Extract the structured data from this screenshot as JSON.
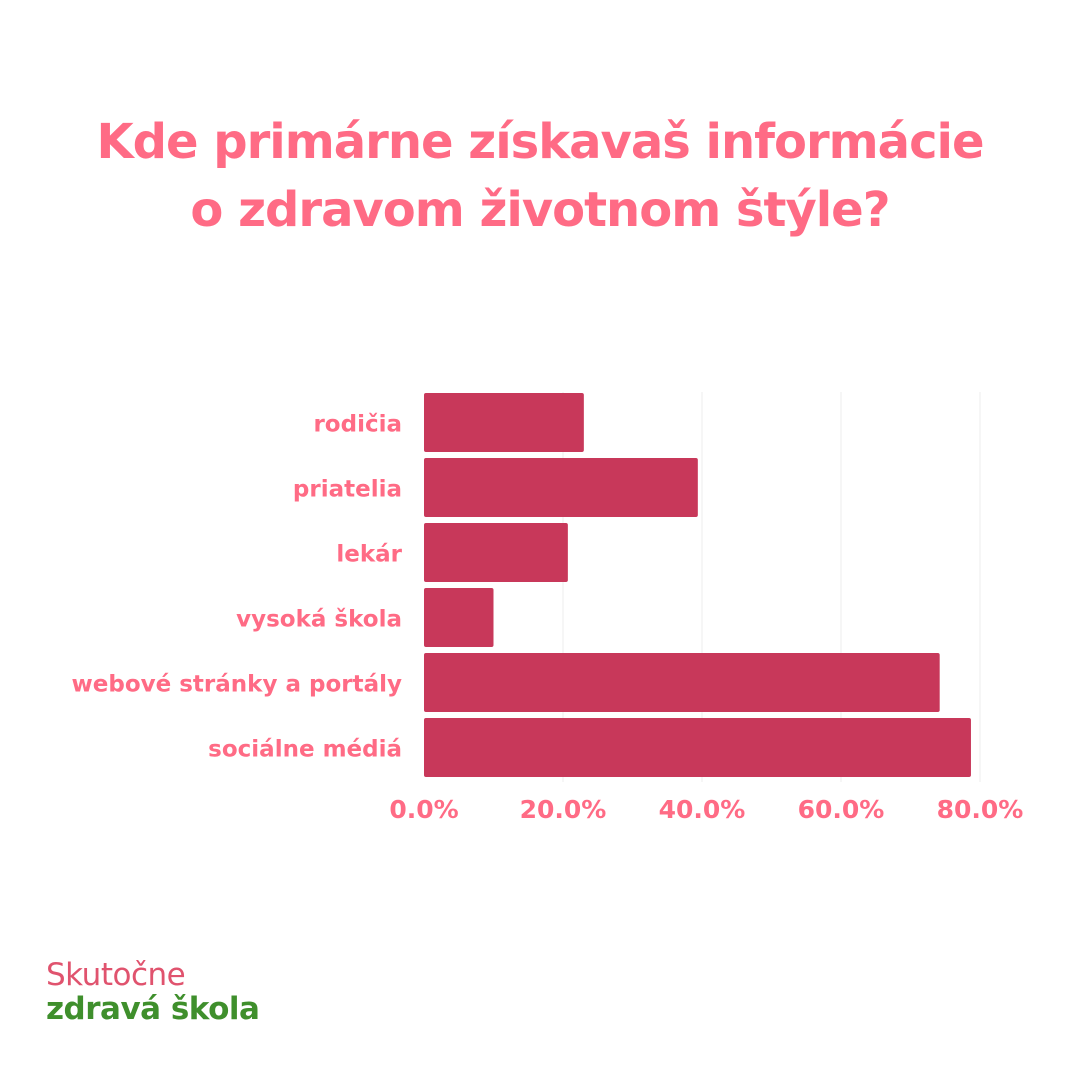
{
  "title_lines": [
    "Kde primárne získavaš informácie",
    "o zdravom životnom štýle?"
  ],
  "logo": {
    "line1": "Skutočne",
    "line2": "zdravá škola"
  },
  "colors": {
    "title": "#ff6b85",
    "bar": "#c8385a",
    "labels": "#ff6b85",
    "grid": "#ececec",
    "logo_line1": "#e0536e",
    "logo_line2": "#3f8f2c"
  },
  "chart_data": {
    "type": "bar",
    "orientation": "horizontal",
    "categories": [
      "rodičia",
      "priatelia",
      "lekár",
      "vysoká škola",
      "webové stránky a portály",
      "sociálne médiá"
    ],
    "values": [
      23.0,
      39.4,
      20.7,
      10.0,
      74.2,
      78.7
    ],
    "xlim": [
      0,
      80
    ],
    "xticks": [
      0,
      20,
      40,
      60,
      80
    ],
    "xtick_labels": [
      "0.0%",
      "20.0%",
      "40.0%",
      "60.0%",
      "80.0%"
    ],
    "grid": true,
    "legend": "none"
  }
}
